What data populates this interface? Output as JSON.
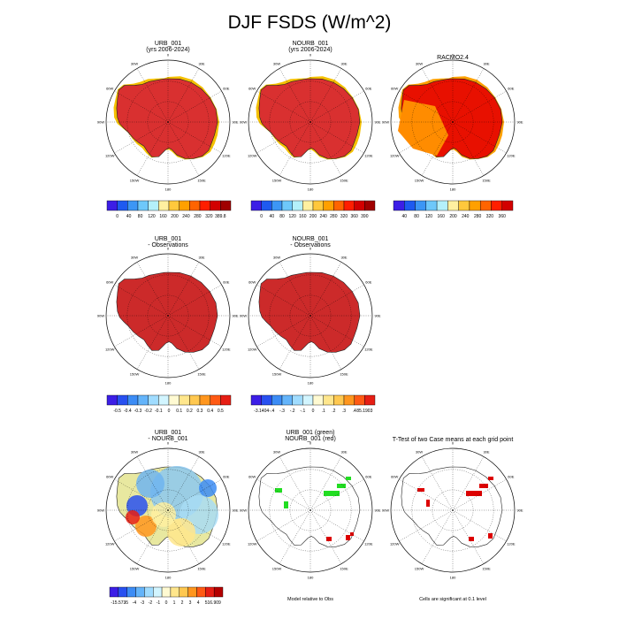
{
  "figure": {
    "title": "DJF FSDS (W/m^2)"
  },
  "chart_data": [
    {
      "type": "heatmap",
      "panel": "urb_001",
      "title": "URB_001",
      "subtitle": "(yrs 2006-2024)",
      "colorbar": {
        "ticks": [
          "0",
          "40",
          "80",
          "120",
          "160",
          "200",
          "240",
          "280",
          "320",
          "389.8"
        ]
      }
    },
    {
      "type": "heatmap",
      "panel": "nourb_001",
      "title": "NOURB_001",
      "subtitle": "(yrs 2006-2024)",
      "colorbar": {
        "ticks": [
          "0",
          "40",
          "80",
          "120",
          "160",
          "200",
          "240",
          "280",
          "320",
          "360",
          "390"
        ]
      }
    },
    {
      "type": "heatmap",
      "panel": "racmo",
      "title": "RACMO2.4",
      "subtitle": "",
      "colorbar": {
        "ticks": [
          "40",
          "80",
          "120",
          "160",
          "200",
          "240",
          "280",
          "320",
          "360"
        ]
      }
    },
    {
      "type": "heatmap",
      "panel": "urb_minus_obs",
      "title": "URB_001",
      "subtitle": "- Observations",
      "colorbar": {
        "ticks": [
          "-0.5",
          "-0.4",
          "-0.3",
          "-0.2",
          "-0.1",
          "0",
          "0.1",
          "0.2",
          "0.3",
          "0.4",
          "0.5"
        ]
      }
    },
    {
      "type": "heatmap",
      "panel": "nourb_minus_obs",
      "title": "NOURB_001",
      "subtitle": "- Observations",
      "colorbar": {
        "ticks": [
          "-3.1404",
          "-.4",
          "-.3",
          "-.2",
          "-.1",
          "0",
          ".1",
          ".2",
          ".3",
          ".4",
          "85.1903"
        ]
      }
    },
    {
      "type": "heatmap",
      "panel": "urb_minus_nourb",
      "title": "URB_001",
      "subtitle": "- NOURB_001",
      "colorbar": {
        "ticks": [
          "-15.573",
          "-5",
          "-4",
          "-3",
          "-2",
          "-1",
          "0",
          "1",
          "2",
          "3",
          "4",
          "5",
          "16.909"
        ]
      }
    },
    {
      "type": "heatmap",
      "panel": "model_vs_obs",
      "title": "URB_001 (green)",
      "subtitle": "NOURB_001 (red)",
      "footnote": "Model relative to Obs"
    },
    {
      "type": "heatmap",
      "panel": "ttest",
      "title": "T-Test of two Case means at each grid point",
      "subtitle": "",
      "footnote": "Cells are significant at 0.1 level"
    }
  ],
  "map_labels": [
    "0",
    "30E",
    "60E",
    "90E",
    "120E",
    "150E",
    "180",
    "150W",
    "120W",
    "90W",
    "60W",
    "30W"
  ],
  "colors": {
    "abs_scale": [
      "#3c1ee6",
      "#1e5af0",
      "#3c96f5",
      "#6ec8fa",
      "#b4f0fa",
      "#fff0a0",
      "#ffc83c",
      "#ffa000",
      "#ff6400",
      "#ff1e00",
      "#d20000",
      "#a00000"
    ],
    "diff_scale": [
      "#3c1ee6",
      "#2850f0",
      "#3c8cf5",
      "#64b4fa",
      "#a0dcff",
      "#d2f5ff",
      "#fffad2",
      "#ffe68c",
      "#ffc850",
      "#ff961e",
      "#ff5a14",
      "#e61e14",
      "#b40000"
    ],
    "urb_green": "#22dd22",
    "nourb_red": "#dd0000"
  }
}
